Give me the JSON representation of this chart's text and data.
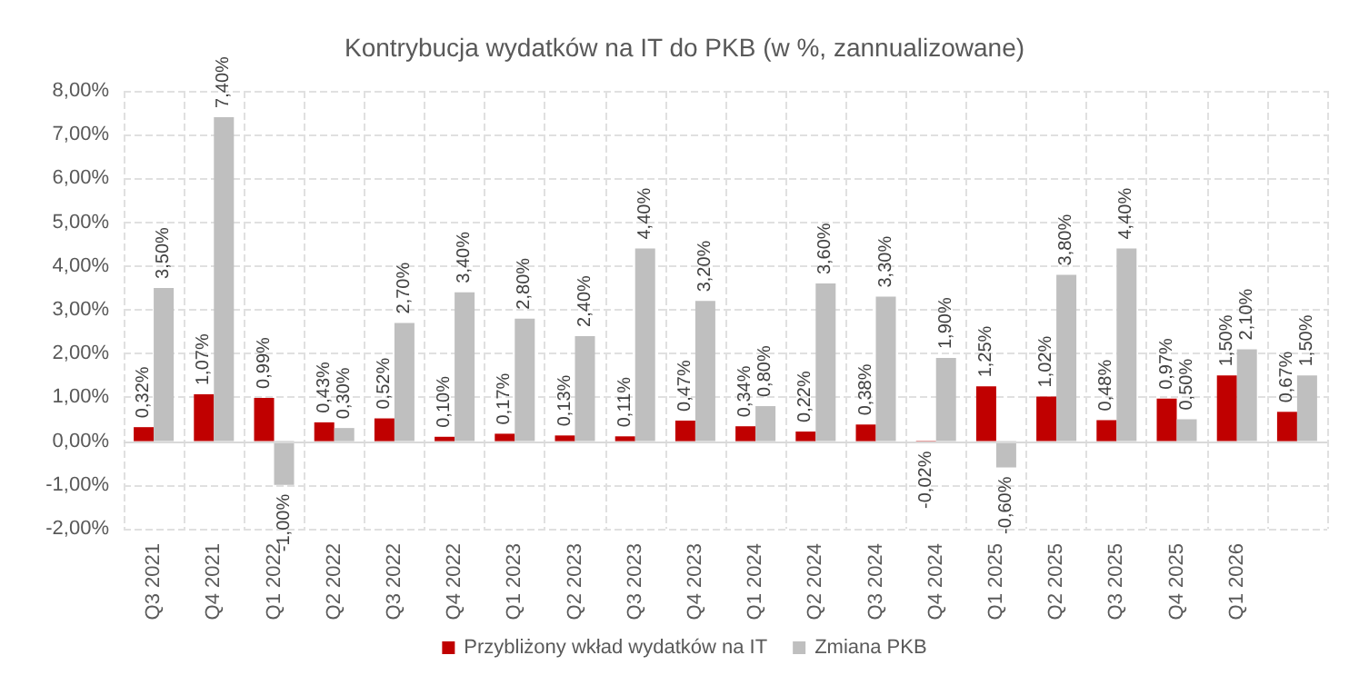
{
  "chart_data": {
    "type": "bar",
    "title": "Kontrybucja wydatków na IT do PKB (w %, zannualizowane)",
    "categories": [
      "Q3 2021",
      "Q4 2021",
      "Q1 2022",
      "Q2 2022",
      "Q3 2022",
      "Q4 2022",
      "Q1 2023",
      "Q2 2023",
      "Q3 2023",
      "Q4 2023",
      "Q1 2024",
      "Q2 2024",
      "Q3 2024",
      "Q4 2024",
      "Q1 2025",
      "Q2 2025",
      "Q3 2025",
      "Q4 2025",
      "Q1 2026",
      null
    ],
    "series": [
      {
        "name": "Przybliżony wkład wydatków na IT",
        "color": "#c00000",
        "values": [
          0.32,
          1.07,
          0.99,
          0.43,
          0.52,
          0.1,
          0.17,
          0.13,
          0.11,
          0.47,
          0.34,
          0.22,
          0.38,
          -0.02,
          1.25,
          1.02,
          0.48,
          0.97,
          1.5,
          0.67
        ],
        "value_labels": [
          "0,32%",
          "1,07%",
          "0,99%",
          "0,43%",
          "0,52%",
          "0,10%",
          "0,17%",
          "0,13%",
          "0,11%",
          "0,47%",
          "0,34%",
          "0,22%",
          "0,38%",
          "-0,02%",
          "1,25%",
          "1,02%",
          "0,48%",
          "0,97%",
          "1,50%",
          "0,67%"
        ]
      },
      {
        "name": "Zmiana PKB",
        "color": "#bfbfbf",
        "values": [
          3.5,
          7.4,
          -1.0,
          0.3,
          2.7,
          3.4,
          2.8,
          2.4,
          4.4,
          3.2,
          0.8,
          3.6,
          3.3,
          1.9,
          -0.6,
          3.8,
          4.4,
          0.5,
          2.1,
          1.5
        ],
        "value_labels": [
          "3,50%",
          "7,40%",
          "-1,00%",
          "0,30%",
          "2,70%",
          "3,40%",
          "2,80%",
          "2,40%",
          "4,40%",
          "3,20%",
          "0,80%",
          "3,60%",
          "3,30%",
          "1,90%",
          "-0,60%",
          "3,80%",
          "4,40%",
          "0,50%",
          "2,10%",
          "1,50%"
        ]
      }
    ],
    "ylim": [
      -2,
      8
    ],
    "yticks": [
      {
        "value": -2,
        "label": "-2,00%"
      },
      {
        "value": -1,
        "label": "-1,00%"
      },
      {
        "value": 0,
        "label": "0,00%"
      },
      {
        "value": 1,
        "label": "1,00%"
      },
      {
        "value": 2,
        "label": "2,00%"
      },
      {
        "value": 3,
        "label": "3,00%"
      },
      {
        "value": 4,
        "label": "4,00%"
      },
      {
        "value": 5,
        "label": "5,00%"
      },
      {
        "value": 6,
        "label": "6,00%"
      },
      {
        "value": 7,
        "label": "7,00%"
      },
      {
        "value": 8,
        "label": "8,00%"
      }
    ],
    "grid": true,
    "legend": "bottom"
  }
}
